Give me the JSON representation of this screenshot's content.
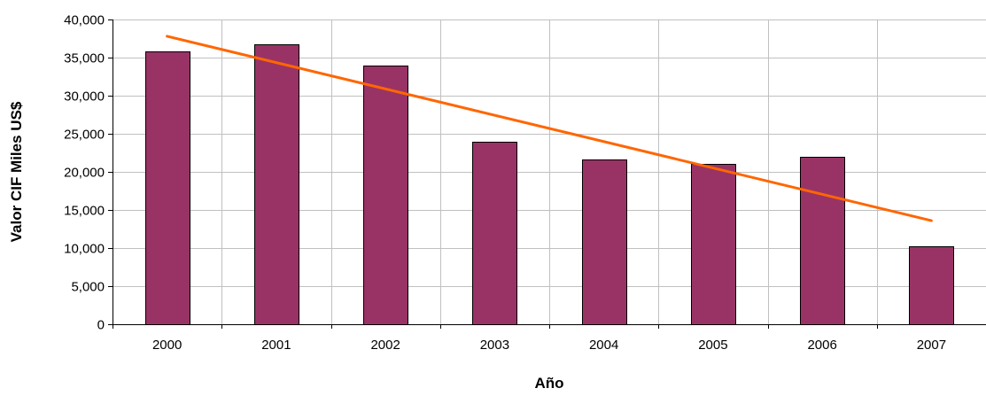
{
  "chart_data": {
    "type": "bar",
    "title": "",
    "xlabel": "Año",
    "ylabel": "Valor CIF Miles US$",
    "categories": [
      "2000",
      "2001",
      "2002",
      "2003",
      "2004",
      "2005",
      "2006",
      "2007"
    ],
    "series": [
      {
        "values": [
          35800,
          36700,
          34000,
          24000,
          21600,
          21100,
          22000,
          10200
        ]
      }
    ],
    "trendline": {
      "type": "linear",
      "start": 37800,
      "end": 13600
    },
    "ylim": [
      0,
      40000
    ],
    "yticks": [
      "0",
      "5,000",
      "10,000",
      "15,000",
      "20,000",
      "25,000",
      "30,000",
      "35,000",
      "40,000"
    ],
    "grid": true,
    "legend": "none",
    "colors": {
      "bar": "#993366",
      "bar_outline": "#000000",
      "trendline": "#ff6600",
      "grid": "#c0c0c0"
    }
  }
}
